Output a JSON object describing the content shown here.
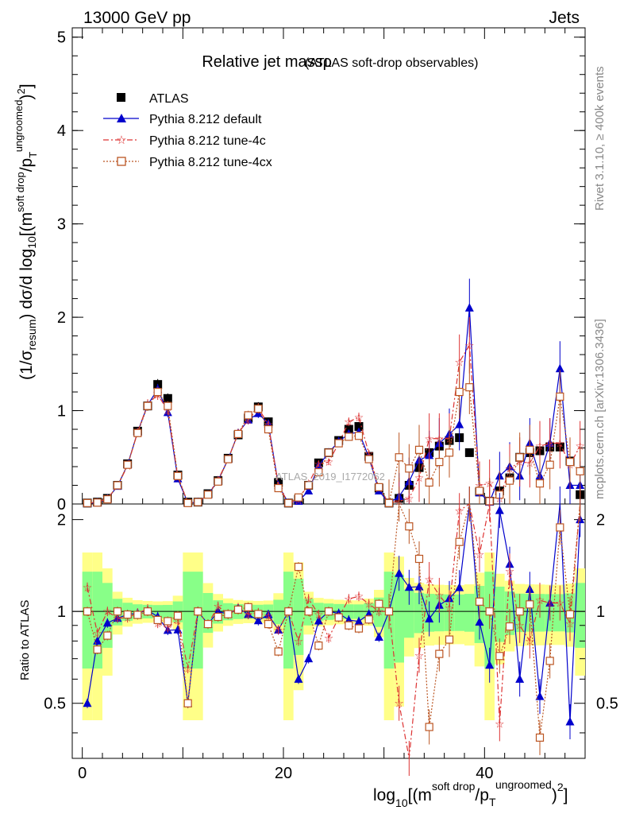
{
  "header": {
    "left": "13000 GeV pp",
    "right": "Jets"
  },
  "side_labels": {
    "rivet": "Rivet 3.1.10, ≥ 400k events",
    "mcplots": "mcplots.cern.ch [arXiv:1306.3436]"
  },
  "watermark": "ATLAS_2019_I1772062",
  "chart_data": {
    "type": "line",
    "title": "Relative jet massρ",
    "subtitle": "(ATLAS soft-drop observables)",
    "xlabel": "log10[(m^soft drop/pT^ungroomed)^2]",
    "ylabel": "(1/σresum) dσ/d log10[(m^soft drop/pT^ungroomed)^2]",
    "ratio_ylabel": "Ratio to ATLAS",
    "xlim": [
      -1,
      50
    ],
    "ylim": [
      0,
      5.1
    ],
    "ratio_ylim": [
      0.33,
      2.25
    ],
    "x_ticks": [
      0,
      20,
      40
    ],
    "y_ticks": [
      0,
      1,
      2,
      3,
      4,
      5
    ],
    "ratio_ticks": [
      0.5,
      1,
      2
    ],
    "legend": [
      "ATLAS",
      "Pythia 8.212 default",
      "Pythia 8.212 tune-4c",
      "Pythia 8.212 tune-4cx"
    ],
    "x": [
      0.5,
      1.5,
      2.5,
      3.5,
      4.5,
      5.5,
      6.5,
      7.5,
      8.5,
      9.5,
      10.5,
      11.5,
      12.5,
      13.5,
      14.5,
      15.5,
      16.5,
      17.5,
      18.5,
      19.5,
      20.5,
      21.5,
      22.5,
      23.5,
      24.5,
      25.5,
      26.5,
      27.5,
      28.5,
      29.5,
      30.5,
      31.5,
      32.5,
      33.5,
      34.5,
      35.5,
      36.5,
      37.5,
      38.5,
      39.5,
      40.5,
      41.5,
      42.5,
      43.5,
      44.5,
      45.5,
      46.5,
      47.5,
      48.5,
      49.5
    ],
    "series": [
      {
        "name": "ATLAS",
        "color": "#000000",
        "values": [
          0.01,
          0.02,
          0.06,
          0.2,
          0.43,
          0.78,
          1.05,
          1.28,
          1.13,
          0.31,
          0.02,
          0.02,
          0.11,
          0.25,
          0.49,
          0.74,
          0.92,
          1.04,
          0.88,
          0.23,
          0.01,
          0.05,
          0.2,
          0.44,
          0.55,
          0.68,
          0.8,
          0.83,
          0.51,
          0.17,
          0.01,
          0.06,
          0.2,
          0.39,
          0.55,
          0.62,
          0.68,
          0.71,
          0.55,
          0.13,
          0.03,
          0.14,
          0.28,
          0.5,
          0.55,
          0.57,
          0.61,
          0.61,
          0.46,
          0.1
        ]
      },
      {
        "name": "Pythia 8.212 default",
        "color": "#0000cc",
        "values": [
          0.005,
          0.016,
          0.055,
          0.19,
          0.42,
          0.77,
          1.06,
          1.23,
          0.98,
          0.27,
          0.01,
          0.02,
          0.1,
          0.25,
          0.48,
          0.76,
          0.9,
          0.97,
          0.86,
          0.2,
          0.01,
          0.03,
          0.14,
          0.41,
          0.55,
          0.67,
          0.75,
          0.77,
          0.5,
          0.14,
          0.01,
          0.08,
          0.24,
          0.47,
          0.52,
          0.65,
          0.75,
          0.85,
          2.1,
          0.12,
          0.02,
          0.3,
          0.4,
          0.3,
          0.65,
          0.3,
          0.65,
          1.45,
          0.2,
          0.2
        ]
      },
      {
        "name": "Pythia 8.212 tune-4c",
        "color": "#dd3333",
        "values": [
          0.012,
          0.017,
          0.06,
          0.19,
          0.41,
          0.77,
          1.07,
          1.17,
          1.0,
          0.29,
          0.013,
          0.02,
          0.1,
          0.26,
          0.48,
          0.76,
          0.9,
          1.03,
          0.85,
          0.2,
          0.01,
          0.04,
          0.22,
          0.43,
          0.45,
          0.65,
          0.88,
          0.93,
          0.54,
          0.17,
          0.01,
          0.03,
          0.06,
          0.28,
          0.7,
          0.7,
          0.7,
          1.52,
          1.7,
          0.2,
          0.22,
          0.06,
          0.38,
          0.45,
          0.44,
          0.62,
          0.65,
          0.65,
          0.42,
          0.62
        ]
      },
      {
        "name": "Pythia 8.212 tune-4cx",
        "color": "#bb5522",
        "values": [
          0.01,
          0.015,
          0.05,
          0.2,
          0.42,
          0.76,
          1.05,
          1.2,
          1.05,
          0.3,
          0.01,
          0.02,
          0.1,
          0.24,
          0.48,
          0.75,
          0.95,
          1.02,
          0.8,
          0.17,
          0.01,
          0.07,
          0.2,
          0.34,
          0.55,
          0.65,
          0.72,
          0.73,
          0.48,
          0.18,
          0.01,
          0.5,
          0.38,
          0.58,
          0.23,
          0.45,
          0.55,
          1.2,
          1.25,
          0.14,
          0.03,
          0.1,
          0.25,
          0.5,
          0.58,
          0.22,
          0.42,
          1.15,
          0.45,
          0.35
        ]
      }
    ]
  }
}
